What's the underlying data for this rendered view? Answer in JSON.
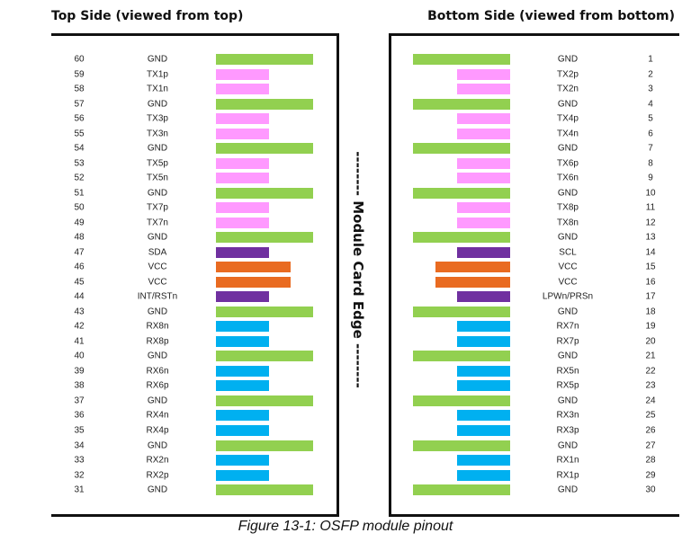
{
  "titles": {
    "top": "Top Side (viewed from top)",
    "bottom": "Bottom Side (viewed from bottom)"
  },
  "edge_label": "-------- Module Card Edge --------",
  "caption": "Figure 13-1: OSFP module pinout",
  "colors": {
    "gnd": "#92d050",
    "tx": "#ff99ff",
    "rx": "#00b0f0",
    "vcc": "#e96b21",
    "ctrl": "#7030a0"
  },
  "top_pins": [
    {
      "pin": "60",
      "name": "GND",
      "type": "gnd"
    },
    {
      "pin": "59",
      "name": "TX1p",
      "type": "tx"
    },
    {
      "pin": "58",
      "name": "TX1n",
      "type": "tx"
    },
    {
      "pin": "57",
      "name": "GND",
      "type": "gnd"
    },
    {
      "pin": "56",
      "name": "TX3p",
      "type": "tx"
    },
    {
      "pin": "55",
      "name": "TX3n",
      "type": "tx"
    },
    {
      "pin": "54",
      "name": "GND",
      "type": "gnd"
    },
    {
      "pin": "53",
      "name": "TX5p",
      "type": "tx"
    },
    {
      "pin": "52",
      "name": "TX5n",
      "type": "tx"
    },
    {
      "pin": "51",
      "name": "GND",
      "type": "gnd"
    },
    {
      "pin": "50",
      "name": "TX7p",
      "type": "tx"
    },
    {
      "pin": "49",
      "name": "TX7n",
      "type": "tx"
    },
    {
      "pin": "48",
      "name": "GND",
      "type": "gnd"
    },
    {
      "pin": "47",
      "name": "SDA",
      "type": "ctrl"
    },
    {
      "pin": "46",
      "name": "VCC",
      "type": "vcc"
    },
    {
      "pin": "45",
      "name": "VCC",
      "type": "vcc"
    },
    {
      "pin": "44",
      "name": "INT/RSTn",
      "type": "ctrl"
    },
    {
      "pin": "43",
      "name": "GND",
      "type": "gnd"
    },
    {
      "pin": "42",
      "name": "RX8n",
      "type": "rx"
    },
    {
      "pin": "41",
      "name": "RX8p",
      "type": "rx"
    },
    {
      "pin": "40",
      "name": "GND",
      "type": "gnd"
    },
    {
      "pin": "39",
      "name": "RX6n",
      "type": "rx"
    },
    {
      "pin": "38",
      "name": "RX6p",
      "type": "rx"
    },
    {
      "pin": "37",
      "name": "GND",
      "type": "gnd"
    },
    {
      "pin": "36",
      "name": "RX4n",
      "type": "rx"
    },
    {
      "pin": "35",
      "name": "RX4p",
      "type": "rx"
    },
    {
      "pin": "34",
      "name": "GND",
      "type": "gnd"
    },
    {
      "pin": "33",
      "name": "RX2n",
      "type": "rx"
    },
    {
      "pin": "32",
      "name": "RX2p",
      "type": "rx"
    },
    {
      "pin": "31",
      "name": "GND",
      "type": "gnd"
    }
  ],
  "bottom_pins": [
    {
      "pin": "1",
      "name": "GND",
      "type": "gnd"
    },
    {
      "pin": "2",
      "name": "TX2p",
      "type": "tx"
    },
    {
      "pin": "3",
      "name": "TX2n",
      "type": "tx"
    },
    {
      "pin": "4",
      "name": "GND",
      "type": "gnd"
    },
    {
      "pin": "5",
      "name": "TX4p",
      "type": "tx"
    },
    {
      "pin": "6",
      "name": "TX4n",
      "type": "tx"
    },
    {
      "pin": "7",
      "name": "GND",
      "type": "gnd"
    },
    {
      "pin": "8",
      "name": "TX6p",
      "type": "tx"
    },
    {
      "pin": "9",
      "name": "TX6n",
      "type": "tx"
    },
    {
      "pin": "10",
      "name": "GND",
      "type": "gnd"
    },
    {
      "pin": "11",
      "name": "TX8p",
      "type": "tx"
    },
    {
      "pin": "12",
      "name": "TX8n",
      "type": "tx"
    },
    {
      "pin": "13",
      "name": "GND",
      "type": "gnd"
    },
    {
      "pin": "14",
      "name": "SCL",
      "type": "ctrl"
    },
    {
      "pin": "15",
      "name": "VCC",
      "type": "vcc"
    },
    {
      "pin": "16",
      "name": "VCC",
      "type": "vcc"
    },
    {
      "pin": "17",
      "name": "LPWn/PRSn",
      "type": "ctrl"
    },
    {
      "pin": "18",
      "name": "GND",
      "type": "gnd"
    },
    {
      "pin": "19",
      "name": "RX7n",
      "type": "rx"
    },
    {
      "pin": "20",
      "name": "RX7p",
      "type": "rx"
    },
    {
      "pin": "21",
      "name": "GND",
      "type": "gnd"
    },
    {
      "pin": "22",
      "name": "RX5n",
      "type": "rx"
    },
    {
      "pin": "23",
      "name": "RX5p",
      "type": "rx"
    },
    {
      "pin": "24",
      "name": "GND",
      "type": "gnd"
    },
    {
      "pin": "25",
      "name": "RX3n",
      "type": "rx"
    },
    {
      "pin": "26",
      "name": "RX3p",
      "type": "rx"
    },
    {
      "pin": "27",
      "name": "GND",
      "type": "gnd"
    },
    {
      "pin": "28",
      "name": "RX1n",
      "type": "rx"
    },
    {
      "pin": "29",
      "name": "RX1p",
      "type": "rx"
    },
    {
      "pin": "30",
      "name": "GND",
      "type": "gnd"
    }
  ]
}
